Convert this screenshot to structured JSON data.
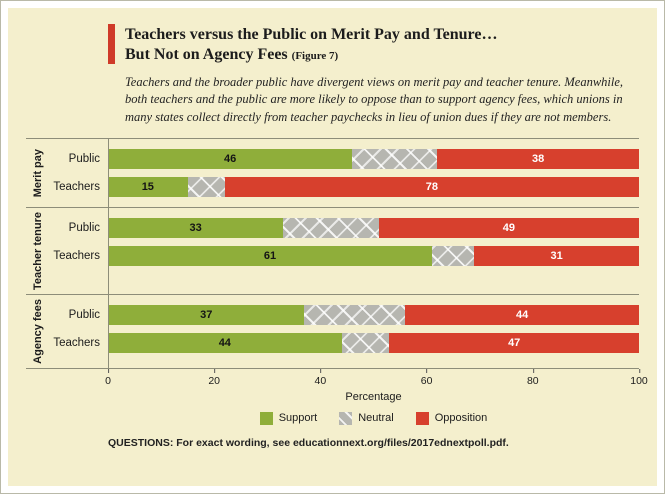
{
  "title": {
    "line1": "Teachers versus the Public on Merit Pay and Tenure…",
    "line2": "But Not on Agency Fees",
    "figure": "(Figure 7)"
  },
  "description": "Teachers and the broader public have divergent views on merit pay and teacher tenure. Meanwhile, both teachers and the public are more likely to oppose than to support agency fees, which unions in many states collect directly from teacher paychecks in lieu of union dues if they are not members.",
  "chart_data": {
    "type": "bar",
    "orientation": "horizontal",
    "stacked": true,
    "xlabel": "Percentage",
    "xlim": [
      0,
      100
    ],
    "xticks": [
      0,
      20,
      40,
      60,
      80,
      100
    ],
    "legend_position": "bottom",
    "series_names": [
      "Support",
      "Neutral",
      "Opposition"
    ],
    "groups": [
      {
        "label": "Merit pay",
        "rows": [
          {
            "label": "Public",
            "support": 46,
            "neutral": 16,
            "opposition": 38
          },
          {
            "label": "Teachers",
            "support": 15,
            "neutral": 7,
            "opposition": 78
          }
        ]
      },
      {
        "label": "Teacher tenure",
        "rows": [
          {
            "label": "Public",
            "support": 33,
            "neutral": 18,
            "opposition": 49
          },
          {
            "label": "Teachers",
            "support": 61,
            "neutral": 8,
            "opposition": 31
          }
        ]
      },
      {
        "label": "Agency fees",
        "rows": [
          {
            "label": "Public",
            "support": 37,
            "neutral": 19,
            "opposition": 44
          },
          {
            "label": "Teachers",
            "support": 44,
            "neutral": 9,
            "opposition": 47
          }
        ]
      }
    ],
    "legend": [
      {
        "label": "Support",
        "color": "#8fae3a"
      },
      {
        "label": "Neutral",
        "color": "#b6b6b0"
      },
      {
        "label": "Opposition",
        "color": "#d7402d"
      }
    ]
  },
  "colors": {
    "background": "#f4efcd",
    "accent_red": "#cf3a28",
    "support_green": "#8fae3a",
    "neutral_gray": "#b6b6b0",
    "opposition_red": "#d7402d"
  },
  "footer": "QUESTIONS: For exact wording, see educationnext.org/files/2017ednextpoll.pdf."
}
